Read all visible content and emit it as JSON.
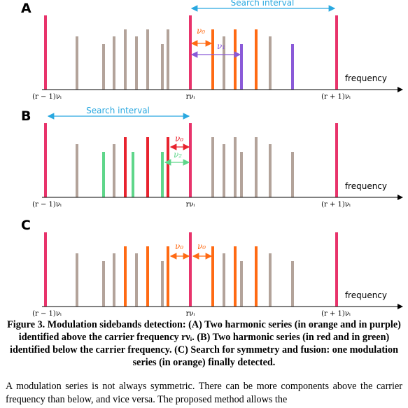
{
  "panels": [
    {
      "label": "A",
      "search_interval": "Search interval",
      "axis_label": "frequency",
      "ticks": [
        "(r − 1)νᵢ",
        "rνᵢ",
        "(r + 1)νᵢ"
      ],
      "deltas": [
        "ν₀",
        "ν₁"
      ]
    },
    {
      "label": "B",
      "search_interval": "Search interval",
      "axis_label": "frequency",
      "ticks": [
        "(r − 1)νᵢ",
        "rνᵢ",
        "(r + 1)νᵢ"
      ],
      "deltas": [
        "ν₀",
        "ν₂"
      ]
    },
    {
      "label": "C",
      "axis_label": "frequency",
      "ticks": [
        "(r − 1)νᵢ",
        "rνᵢ",
        "(r + 1)νᵢ"
      ],
      "deltas": [
        "ν₀",
        "ν₀"
      ]
    }
  ],
  "caption": "Figure 3. Modulation sidebands detection: (A) Two harmonic series (in orange and in purple) identified above the carrier frequency rνᵢ. (B) Two harmonic series (in red and in green) identified below the carrier frequency. (C) Search for symmetry and fusion: one modulation series (in orange) finally detected.",
  "body": "A modulation series is not always symmetric. There can be more components above the carrier frequency than below, and vice versa. The proposed method allows the"
}
